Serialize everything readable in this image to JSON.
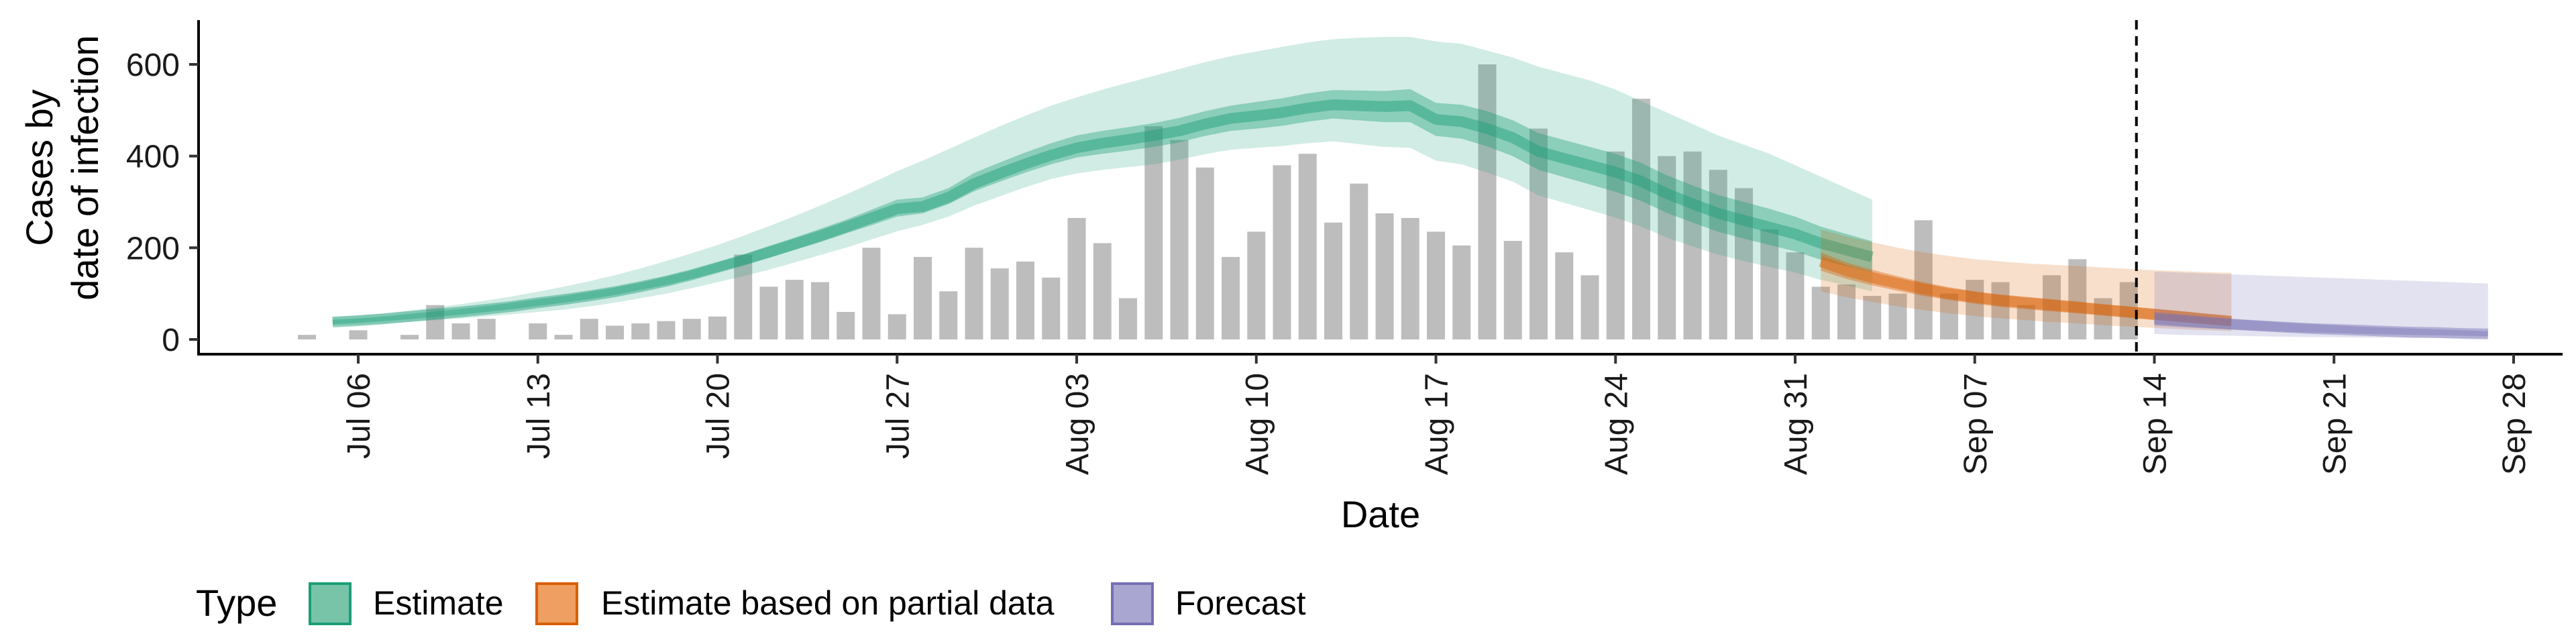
{
  "chart_data": {
    "type": "area",
    "xlabel": "Date",
    "ylabel_lines": [
      "Cases by",
      "date of infection"
    ],
    "ylim": [
      0,
      700
    ],
    "yticks": [
      0,
      200,
      400,
      600
    ],
    "xticks": [
      "Jul 06",
      "Jul 13",
      "Jul 20",
      "Jul 27",
      "Aug 03",
      "Aug 10",
      "Aug 17",
      "Aug 24",
      "Aug 31",
      "Sep 07",
      "Sep 14",
      "Sep 21",
      "Sep 28"
    ],
    "start_date": "2020-07-05",
    "data_start_date": "2020-07-04",
    "forecast_cutoff_date": "2020-09-13",
    "grid": false,
    "legend_position": "bottom-left",
    "reported_cases": {
      "color": "#bdbdbd",
      "dates_start": "Jul 04",
      "values": [
        10,
        0,
        20,
        0,
        10,
        75,
        35,
        45,
        0,
        35,
        10,
        45,
        30,
        35,
        40,
        45,
        50,
        185,
        115,
        130,
        125,
        60,
        200,
        55,
        180,
        105,
        200,
        155,
        170,
        135,
        265,
        210,
        90,
        465,
        435,
        375,
        180,
        235,
        380,
        405,
        255,
        340,
        275,
        265,
        235,
        205,
        600,
        215,
        460,
        190,
        140,
        410,
        525,
        400,
        410,
        370,
        330,
        240,
        190,
        115,
        120,
        95,
        100,
        260,
        100,
        130,
        125,
        75,
        140,
        175,
        90,
        125
      ]
    },
    "legend": {
      "title": "Type",
      "items": [
        {
          "label": "Estimate",
          "fill": "#78c4a9",
          "stroke": "#1b9e77"
        },
        {
          "label": "Estimate based on partial data",
          "fill": "#ee9f61",
          "stroke": "#d95f02"
        },
        {
          "label": "Forecast",
          "fill": "#a9a6d2",
          "stroke": "#7570b3"
        }
      ]
    },
    "series": [
      {
        "name": "Estimate",
        "color": "#1b9e77",
        "start": "Jul 05",
        "median": [
          38,
          41,
          45,
          50,
          55,
          60,
          66,
          72,
          80,
          87,
          95,
          104,
          115,
          127,
          141,
          157,
          173,
          190,
          208,
          226,
          245,
          265,
          285,
          290,
          310,
          340,
          362,
          383,
          402,
          418,
          428,
          436,
          445,
          455,
          470,
          482,
          488,
          495,
          505,
          512,
          510,
          508,
          510,
          480,
          475,
          460,
          440,
          410,
          395,
          380,
          365,
          345,
          318,
          296,
          275,
          260,
          245,
          230,
          210,
          195,
          180
        ],
        "inner_low": [
          33,
          36,
          40,
          44,
          49,
          54,
          60,
          66,
          73,
          80,
          88,
          97,
          108,
          119,
          132,
          147,
          162,
          178,
          195,
          212,
          231,
          249,
          268,
          275,
          295,
          323,
          344,
          364,
          382,
          397,
          405,
          412,
          420,
          430,
          444,
          455,
          460,
          466,
          475,
          482,
          478,
          474,
          474,
          444,
          438,
          421,
          400,
          370,
          354,
          338,
          322,
          302,
          276,
          255,
          235,
          220,
          206,
          192,
          174,
          160,
          146
        ],
        "inner_high": [
          43,
          46,
          50,
          56,
          61,
          67,
          73,
          80,
          88,
          95,
          104,
          113,
          124,
          137,
          151,
          168,
          185,
          204,
          222,
          241,
          261,
          283,
          305,
          310,
          330,
          363,
          386,
          408,
          428,
          445,
          455,
          463,
          472,
          483,
          498,
          510,
          518,
          526,
          537,
          544,
          543,
          542,
          546,
          516,
          512,
          498,
          478,
          450,
          435,
          420,
          405,
          385,
          358,
          336,
          315,
          300,
          285,
          268,
          246,
          230,
          214
        ],
        "outer_low": [
          30,
          32,
          35,
          38,
          42,
          46,
          50,
          55,
          60,
          65,
          72,
          80,
          90,
          100,
          112,
          125,
          138,
          152,
          168,
          184,
          200,
          218,
          236,
          250,
          268,
          292,
          312,
          332,
          350,
          362,
          370,
          376,
          382,
          392,
          404,
          414,
          418,
          422,
          428,
          432,
          426,
          420,
          418,
          390,
          382,
          364,
          344,
          314,
          298,
          282,
          266,
          246,
          222,
          203,
          185,
          171,
          158,
          146,
          130,
          118,
          105
        ],
        "outer_high": [
          48,
          52,
          57,
          63,
          70,
          77,
          85,
          94,
          104,
          115,
          127,
          140,
          155,
          171,
          188,
          206,
          226,
          247,
          269,
          292,
          316,
          341,
          367,
          390,
          415,
          440,
          465,
          488,
          510,
          528,
          545,
          560,
          575,
          590,
          605,
          618,
          628,
          638,
          648,
          655,
          658,
          660,
          660,
          650,
          645,
          630,
          615,
          595,
          580,
          565,
          545,
          520,
          495,
          470,
          445,
          425,
          405,
          380,
          355,
          330,
          305
        ]
      },
      {
        "name": "Estimate based on partial data",
        "color": "#d95f02",
        "start": "Sep 01",
        "median": [
          170,
          150,
          135,
          122,
          110,
          100,
          92,
          85,
          80,
          75,
          70,
          65,
          60,
          55,
          50,
          45,
          40
        ],
        "inner_low": [
          150,
          132,
          118,
          106,
          95,
          86,
          78,
          71,
          66,
          61,
          57,
          52,
          47,
          42,
          38,
          34,
          30
        ],
        "inner_high": [
          190,
          168,
          152,
          138,
          125,
          114,
          105,
          98,
          93,
          88,
          83,
          77,
          72,
          67,
          62,
          56,
          50
        ],
        "outer_low": [
          105,
          92,
          82,
          72,
          64,
          57,
          51,
          46,
          42,
          38,
          35,
          31,
          28,
          25,
          22,
          20,
          18
        ],
        "outer_high": [
          240,
          225,
          212,
          200,
          190,
          182,
          175,
          170,
          166,
          163,
          160,
          157,
          154,
          151,
          149,
          147,
          145
        ]
      },
      {
        "name": "Forecast",
        "color": "#7570b3",
        "start": "Sep 14",
        "median": [
          45,
          41,
          37,
          33,
          30,
          27,
          24,
          22,
          20,
          18,
          16,
          15,
          13,
          12
        ],
        "inner_low": [
          30,
          27,
          24,
          22,
          19,
          17,
          15,
          14,
          12,
          11,
          10,
          9,
          8,
          7
        ],
        "inner_high": [
          60,
          55,
          50,
          45,
          41,
          37,
          34,
          31,
          28,
          26,
          24,
          22,
          20,
          18
        ],
        "outer_low": [
          12,
          10,
          9,
          8,
          7,
          6,
          5,
          5,
          4,
          4,
          3,
          3,
          3,
          2
        ],
        "outer_high": [
          148,
          146,
          144,
          142,
          140,
          138,
          136,
          134,
          132,
          130,
          128,
          126,
          124,
          122
        ]
      }
    ]
  }
}
